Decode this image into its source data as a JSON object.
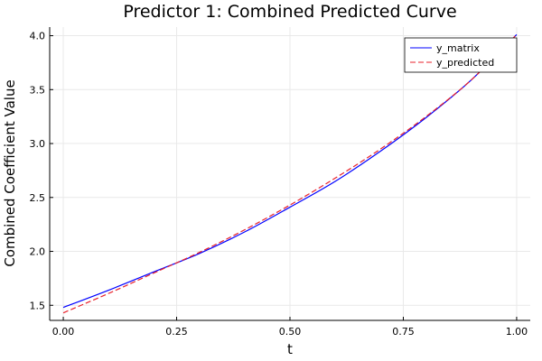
{
  "chart_data": {
    "type": "line",
    "title": "Predictor 1: Combined Predicted Curve",
    "xlabel": "t",
    "ylabel": "Combined Coefficient Value",
    "xlim": [
      -0.03,
      1.03
    ],
    "ylim": [
      1.36,
      4.08
    ],
    "xticks": [
      0.0,
      0.25,
      0.5,
      0.75,
      1.0
    ],
    "xtick_labels": [
      "0.00",
      "0.25",
      "0.50",
      "0.75",
      "1.00"
    ],
    "yticks": [
      1.5,
      2.0,
      2.5,
      3.0,
      3.5,
      4.0
    ],
    "ytick_labels": [
      "1.5",
      "2.0",
      "2.5",
      "3.0",
      "3.5",
      "4.0"
    ],
    "grid": true,
    "legend_position": "top-right",
    "series": [
      {
        "name": "y_matrix",
        "color": "#0000ff",
        "style": "solid",
        "x": [
          0.0,
          0.1,
          0.2,
          0.3,
          0.4,
          0.5,
          0.6,
          0.7,
          0.8,
          0.9,
          1.0
        ],
        "y": [
          1.48,
          1.64,
          1.81,
          1.98,
          2.18,
          2.41,
          2.65,
          2.93,
          3.24,
          3.59,
          4.01
        ]
      },
      {
        "name": "y_predicted",
        "color": "#e8212b",
        "style": "dashed",
        "x": [
          0.0,
          0.1,
          0.2,
          0.3,
          0.4,
          0.5,
          0.6,
          0.7,
          0.8,
          0.9,
          1.0
        ],
        "y": [
          1.43,
          1.61,
          1.8,
          1.99,
          2.2,
          2.43,
          2.68,
          2.95,
          3.25,
          3.59,
          4.01
        ]
      }
    ]
  }
}
